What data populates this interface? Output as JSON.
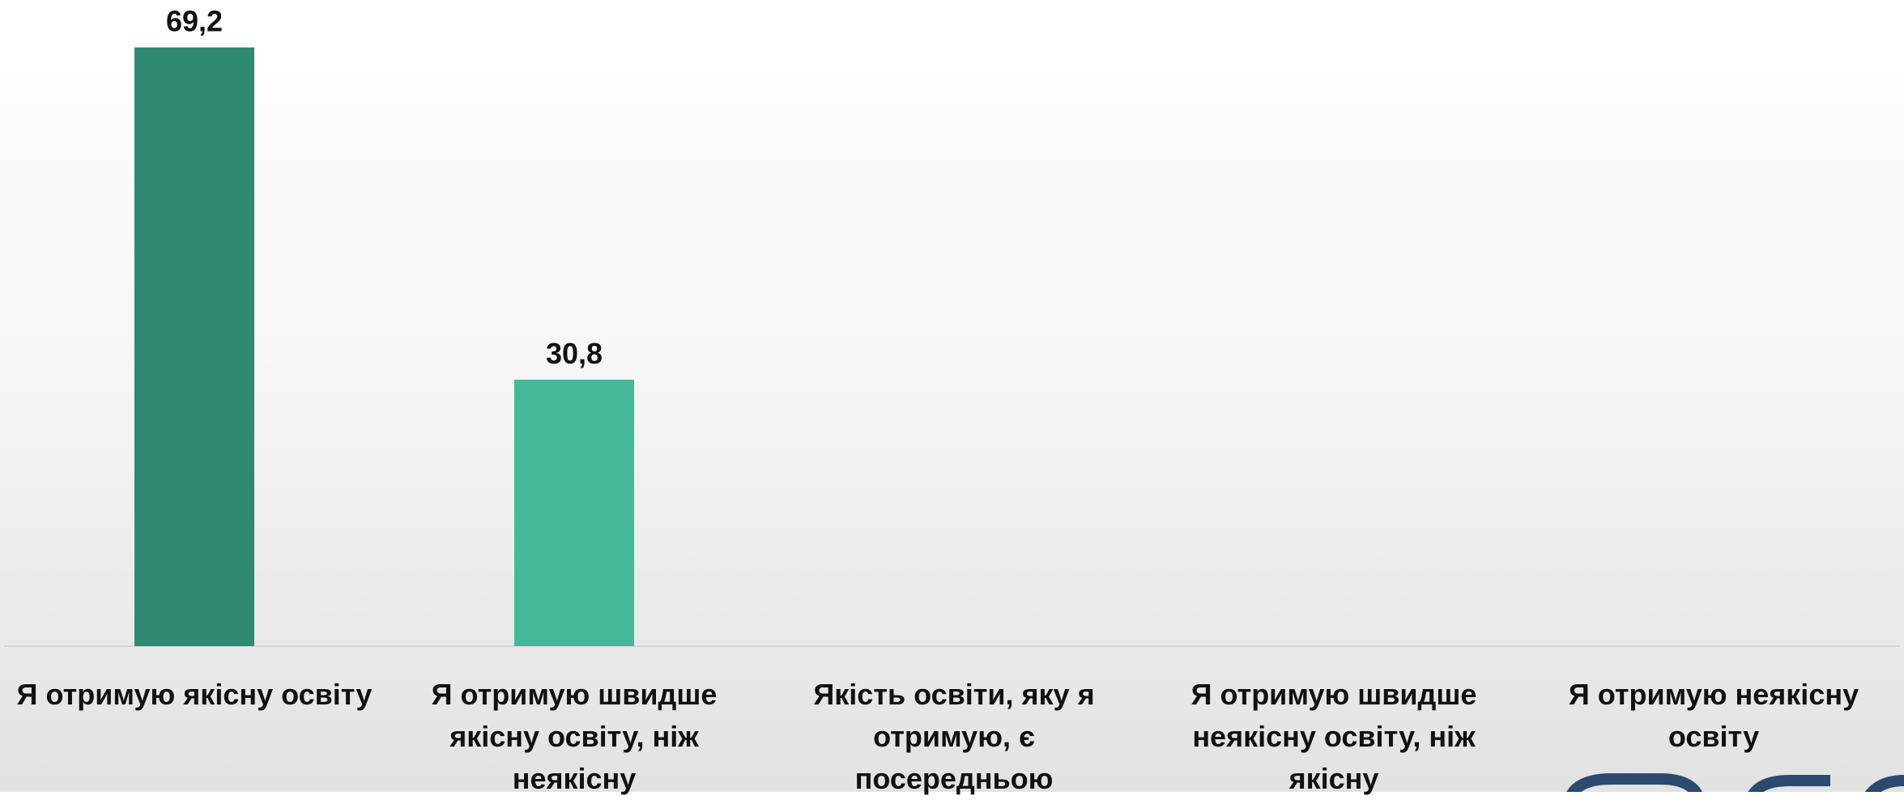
{
  "chart_data": {
    "type": "bar",
    "categories": [
      "Я отримую якісну освіту",
      "Я отримую швидше якісну освіту, ніж неякісну",
      "Якість освіти, яку я отримую, є посередньою",
      "Я отримую швидше неякісну освіту, ніж якісну",
      "Я отримую неякісну освіту"
    ],
    "values": [
      69.2,
      30.8,
      0,
      0,
      0
    ],
    "value_labels": [
      "69,2",
      "30,8",
      "",
      "",
      ""
    ],
    "colors": [
      "#2f8a6f",
      "#43b997",
      "#43b997",
      "#43b997",
      "#43b997"
    ],
    "ylim": [
      0,
      70
    ],
    "grid": false,
    "legend": "none"
  }
}
